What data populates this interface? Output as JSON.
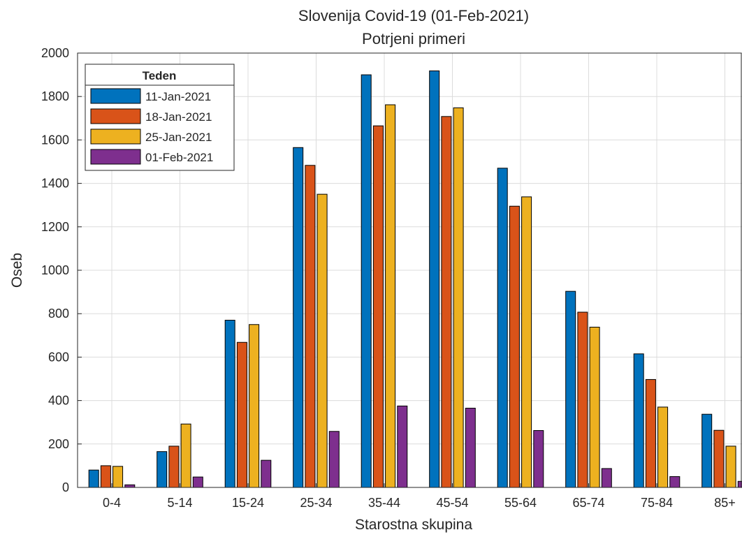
{
  "chart_data": {
    "type": "bar",
    "title": "Slovenija Covid-19 (01-Feb-2021)",
    "subtitle": "Potrjeni primeri",
    "xlabel": "Starostna skupina",
    "ylabel": "Oseb",
    "ylim": [
      0,
      2000
    ],
    "yticks": [
      0,
      200,
      400,
      600,
      800,
      1000,
      1200,
      1400,
      1600,
      1800,
      2000
    ],
    "grid": true,
    "legend_title": "Teden",
    "legend_placement": "top-left",
    "categories": [
      "0-4",
      "5-14",
      "15-24",
      "25-34",
      "35-44",
      "45-54",
      "55-64",
      "65-74",
      "75-84",
      "85+"
    ],
    "series": [
      {
        "name": "11-Jan-2021",
        "color": "#0072BD",
        "values": [
          80,
          165,
          770,
          1565,
          1900,
          1918,
          1470,
          903,
          615,
          337
        ]
      },
      {
        "name": "18-Jan-2021",
        "color": "#D95319",
        "values": [
          100,
          190,
          668,
          1483,
          1665,
          1708,
          1295,
          807,
          497,
          263
        ]
      },
      {
        "name": "25-Jan-2021",
        "color": "#EDB120",
        "values": [
          97,
          292,
          750,
          1350,
          1762,
          1748,
          1338,
          738,
          370,
          190
        ]
      },
      {
        "name": "01-Feb-2021",
        "color": "#7E2F8E",
        "values": [
          12,
          48,
          125,
          258,
          375,
          365,
          262,
          87,
          50,
          28
        ]
      }
    ]
  }
}
